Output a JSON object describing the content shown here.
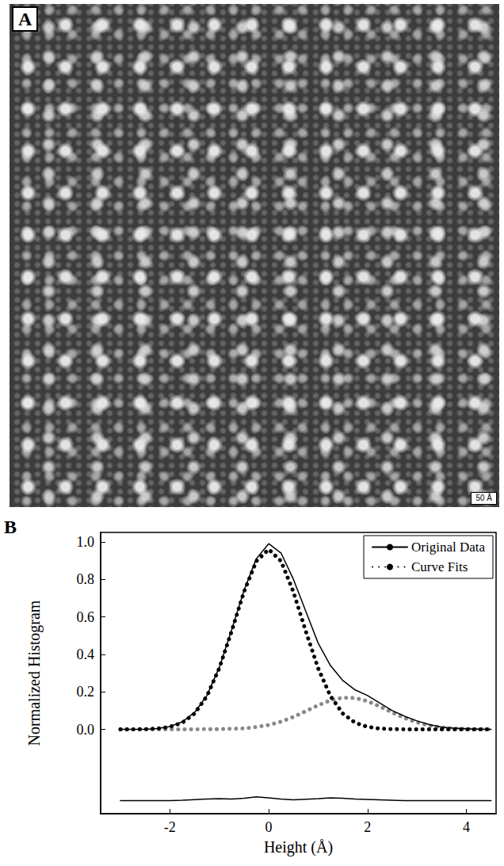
{
  "image_panel": {
    "label": "A",
    "scale_bar": "50 Å"
  },
  "chart_data": {
    "type": "line",
    "panel_label": "B",
    "x_label": "Height (Å)",
    "y_label": "Normalized Histogram",
    "x": [
      -3,
      -2.75,
      -2.5,
      -2.25,
      -2,
      -1.75,
      -1.5,
      -1.25,
      -1,
      -0.75,
      -0.5,
      -0.25,
      0,
      0.25,
      0.5,
      0.75,
      1,
      1.25,
      1.5,
      1.75,
      2,
      2.25,
      2.5,
      2.75,
      3,
      3.25,
      3.5,
      3.75,
      4,
      4.25,
      4.5
    ],
    "series": [
      {
        "name": "Original Data",
        "color": "#000000",
        "line_style": "solid",
        "values": [
          0,
          0,
          0,
          0.004,
          0.015,
          0.04,
          0.09,
          0.18,
          0.33,
          0.53,
          0.74,
          0.91,
          0.99,
          0.94,
          0.8,
          0.63,
          0.46,
          0.34,
          0.26,
          0.21,
          0.18,
          0.14,
          0.1,
          0.07,
          0.045,
          0.025,
          0.012,
          0.006,
          0.003,
          0.001,
          0
        ]
      },
      {
        "name": "Curve Fits",
        "color": "#000000",
        "line_style": "dotted",
        "values": [
          0,
          0,
          0.001,
          0.004,
          0.013,
          0.035,
          0.084,
          0.177,
          0.326,
          0.523,
          0.733,
          0.897,
          0.96,
          0.897,
          0.733,
          0.523,
          0.326,
          0.177,
          0.084,
          0.035,
          0.013,
          0.004,
          0.001,
          0,
          0,
          0,
          0,
          0,
          0,
          0,
          0
        ]
      },
      {
        "name": "Curve Fits",
        "color": "#888888",
        "line_style": "dotted",
        "values": [
          0,
          0,
          0,
          0,
          0,
          0,
          0,
          0.001,
          0.001,
          0.003,
          0.005,
          0.012,
          0.023,
          0.041,
          0.066,
          0.097,
          0.128,
          0.155,
          0.169,
          0.167,
          0.15,
          0.122,
          0.09,
          0.06,
          0.037,
          0.02,
          0.01,
          0.005,
          0.002,
          0.001,
          0
        ]
      },
      {
        "color": "#000000",
        "line_style": "solid",
        "values": [
          -0.38,
          -0.38,
          -0.38,
          -0.38,
          -0.38,
          -0.378,
          -0.375,
          -0.372,
          -0.37,
          -0.372,
          -0.368,
          -0.36,
          -0.365,
          -0.372,
          -0.376,
          -0.373,
          -0.37,
          -0.366,
          -0.368,
          -0.372,
          -0.374,
          -0.376,
          -0.378,
          -0.38,
          -0.38,
          -0.38,
          -0.38,
          -0.38,
          -0.38,
          -0.38,
          -0.38
        ]
      }
    ],
    "xlim": [
      -3.4,
      4.6
    ],
    "xticks": [
      -2,
      0,
      2,
      4
    ],
    "ylim": [
      -0.45,
      1.05
    ],
    "yticks": [
      {
        "value": 0,
        "label": "0.0"
      },
      {
        "value": 0.2,
        "label": "0.2"
      },
      {
        "value": 0.4,
        "label": "0.4"
      },
      {
        "value": 0.6,
        "label": "0.6"
      },
      {
        "value": 0.8,
        "label": "0.8"
      },
      {
        "value": 1,
        "label": "1.0"
      }
    ],
    "legend": "upper right",
    "grid": false
  }
}
